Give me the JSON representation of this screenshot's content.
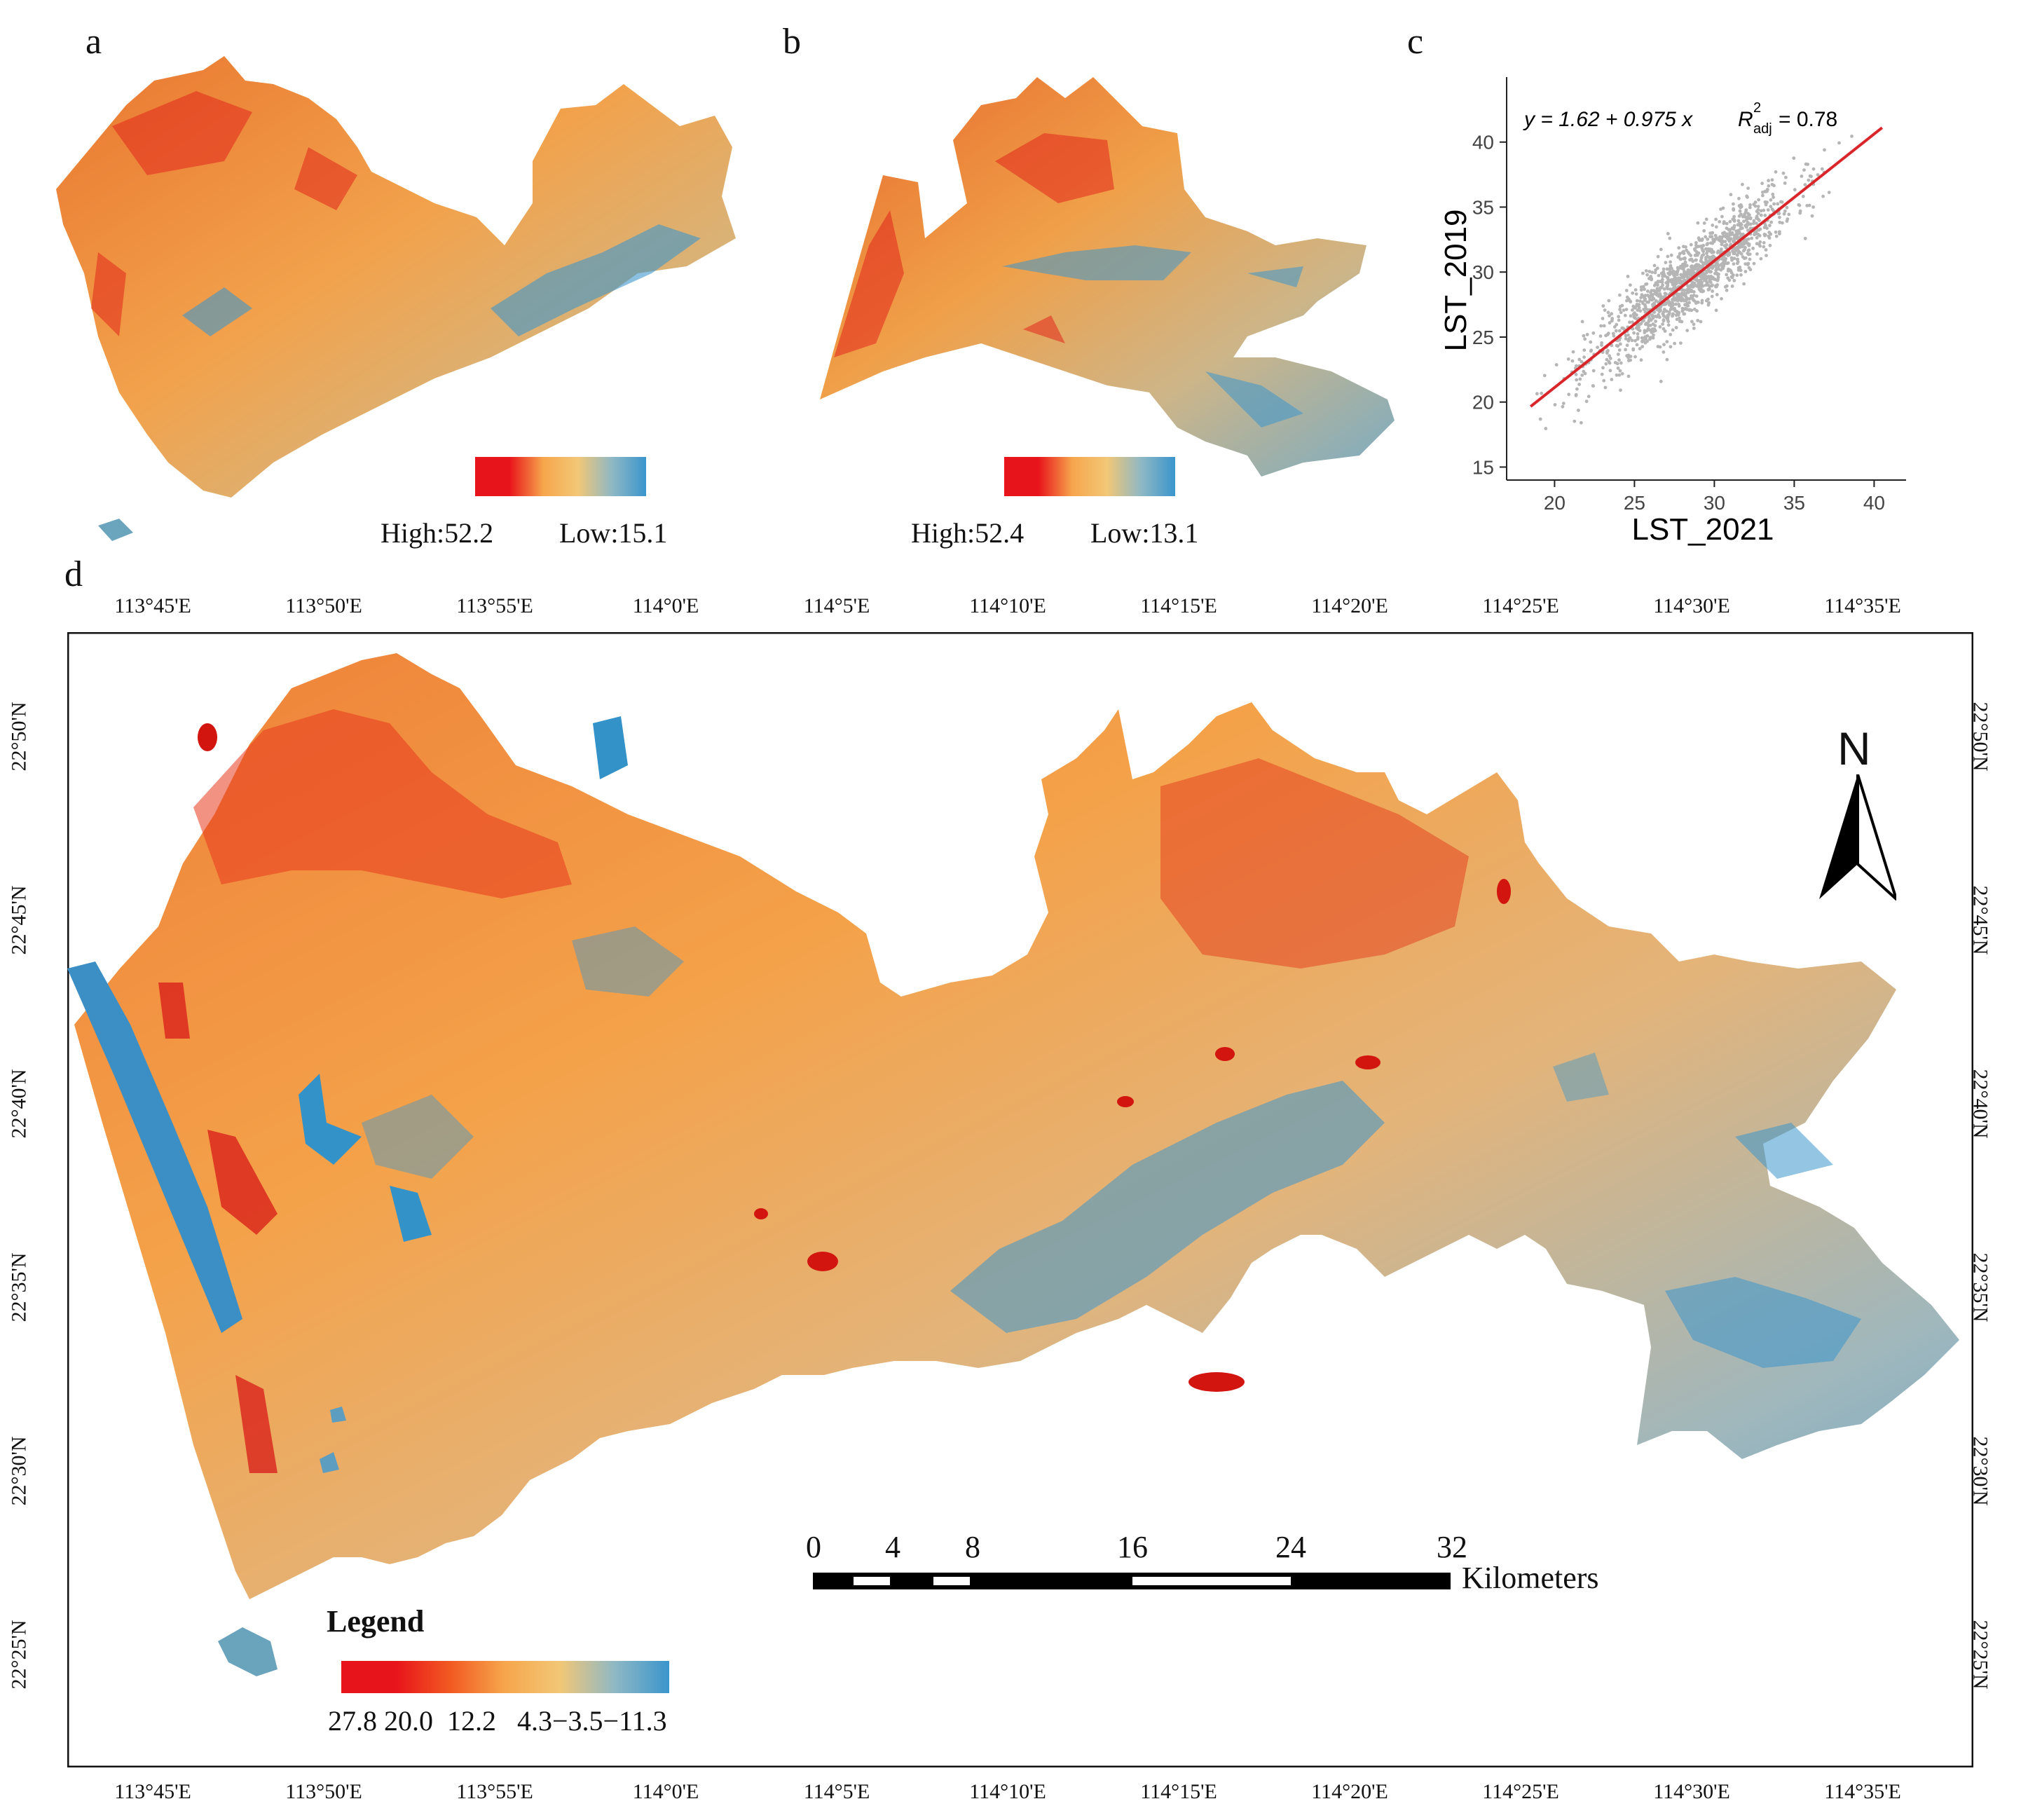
{
  "panels": {
    "a": {
      "letter": "a",
      "legend": {
        "high_label": "High:52.2",
        "low_label": "Low:15.1"
      },
      "ramp": [
        "#e8141b",
        "#e8141b",
        "#f6a64c",
        "#f2c776",
        "#8fb8c4",
        "#3a95cc"
      ]
    },
    "b": {
      "letter": "b",
      "legend": {
        "high_label": "High:52.4",
        "low_label": "Low:13.1"
      },
      "ramp": [
        "#e8141b",
        "#e8141b",
        "#f6a64c",
        "#f2c776",
        "#8fb8c4",
        "#3a95cc"
      ]
    },
    "c": {
      "letter": "c"
    },
    "d": {
      "letter": "d"
    }
  },
  "chart_data": {
    "type": "scatter",
    "xlabel": "LST_2021",
    "ylabel": "LST_2019",
    "xlim": [
      17,
      42
    ],
    "ylim": [
      14,
      45
    ],
    "xticks": [
      20,
      25,
      30,
      35,
      40
    ],
    "yticks": [
      15,
      20,
      25,
      30,
      35,
      40
    ],
    "equation": "y = 1.62 + 0.975 x",
    "r2_label": "R",
    "r2_sup": "2",
    "r2_sub": "adj",
    "r2_value": "= 0.78",
    "fit": {
      "intercept": 1.62,
      "slope": 0.975,
      "x_range": [
        18.5,
        40.5
      ]
    },
    "point_cloud": {
      "x_range": [
        18.5,
        40.5
      ],
      "approx_count": 1400,
      "residual_sd": 1.5
    },
    "colors": {
      "points": "#b5b5b5",
      "fit": "#d9262b"
    }
  },
  "main_map": {
    "top_lon_labels": [
      "113°45'E",
      "113°50'E",
      "113°55'E",
      "114°0'E",
      "114°5'E",
      "114°10'E",
      "114°15'E",
      "114°20'E",
      "114°25'E",
      "114°30'E",
      "114°35'E"
    ],
    "bottom_lon_labels": [
      "113°45'E",
      "113°50'E",
      "113°55'E",
      "114°0'E",
      "114°5'E",
      "114°10'E",
      "114°15'E",
      "114°20'E",
      "114°25'E",
      "114°30'E",
      "114°35'E"
    ],
    "lat_labels": [
      "22°50'N",
      "22°45'N",
      "22°40'N",
      "22°35'N",
      "22°30'N",
      "22°25'N"
    ],
    "north_arrow": "N",
    "scale_bar": {
      "ticks": [
        "0",
        "4",
        "8",
        "16",
        "24",
        "32"
      ],
      "unit": "Kilometers"
    },
    "legend": {
      "title": "Legend",
      "values_text": "27.8 20.0  12.2   4.3−3.5−11.3",
      "ramp": [
        "#e8141b",
        "#e8141b",
        "#f25a22",
        "#f6a64c",
        "#f2c776",
        "#8fb8c4",
        "#3a95cc"
      ]
    },
    "colors": {
      "hot": "#e8141b",
      "warm": "#f49a44",
      "mild": "#f0c27a",
      "cool": "#8db7c6",
      "cold": "#3d96cc"
    }
  }
}
